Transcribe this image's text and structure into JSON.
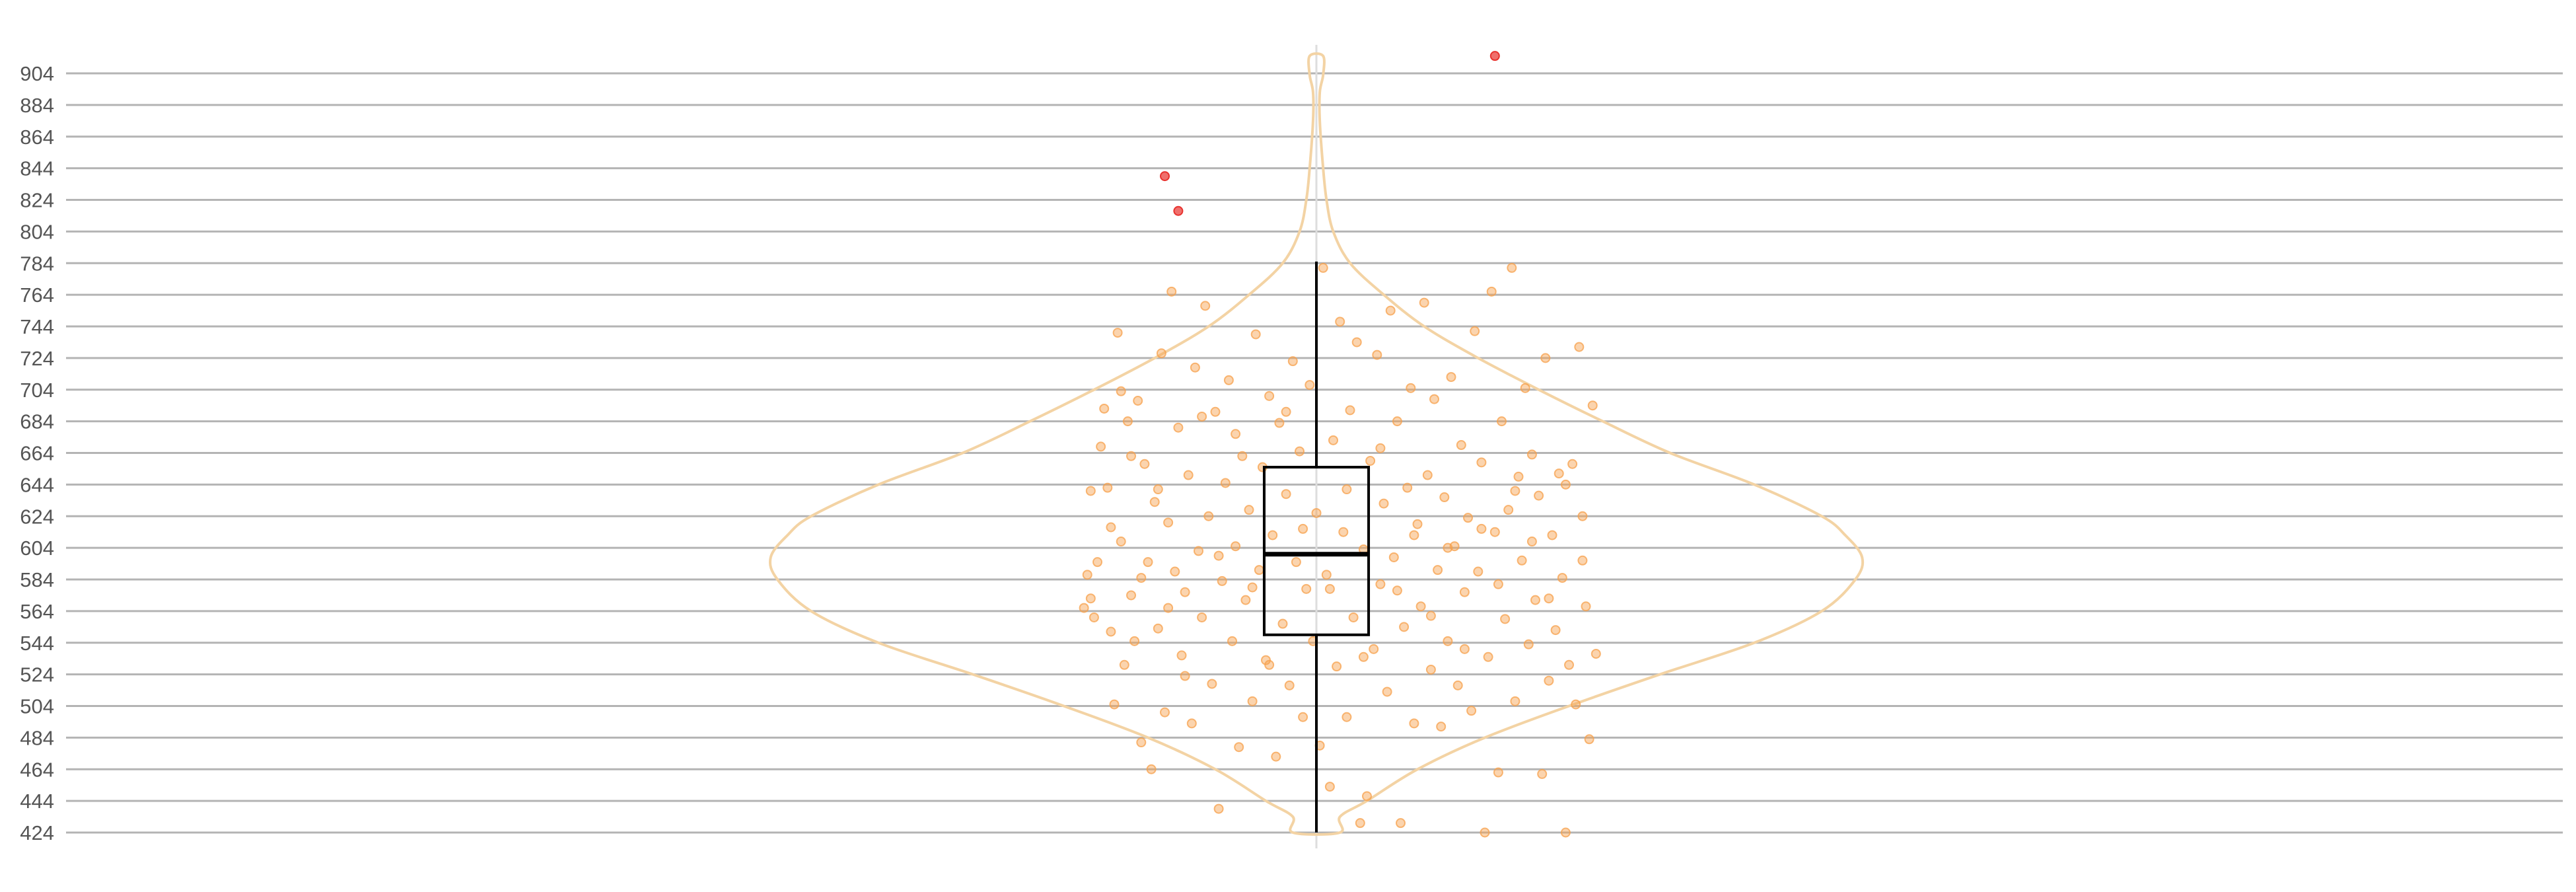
{
  "chart_data": {
    "type": "violin",
    "orientation": "vertical",
    "title": "",
    "xlabel": "",
    "ylabel": "",
    "ylim": [
      414,
      922
    ],
    "y_ticks": [
      424,
      444,
      464,
      484,
      504,
      524,
      544,
      564,
      584,
      604,
      624,
      644,
      664,
      684,
      704,
      724,
      744,
      764,
      784,
      804,
      824,
      844,
      864,
      884,
      904
    ],
    "grid": {
      "horizontal": true,
      "vertical": false
    },
    "legend": "none",
    "colors": {
      "violin_outline": "#f3d3a4",
      "points": "#f7a04b",
      "outliers": "#e8322e",
      "box": "#000000",
      "grid": "#b4b4b4",
      "center_line": "#dddddd"
    },
    "box": {
      "q1": 549,
      "median": 600,
      "q3": 655,
      "whisker_low": 424,
      "whisker_high": 785
    },
    "outliers": [
      {
        "x": -0.45,
        "y": 839
      },
      {
        "x": -0.41,
        "y": 817
      },
      {
        "x": 0.53,
        "y": 915
      }
    ],
    "violin_profile": [
      {
        "y": 424,
        "half_width": 0.07
      },
      {
        "y": 434,
        "half_width": 0.07
      },
      {
        "y": 444,
        "half_width": 0.15
      },
      {
        "y": 464,
        "half_width": 0.3
      },
      {
        "y": 484,
        "half_width": 0.5
      },
      {
        "y": 504,
        "half_width": 0.75
      },
      {
        "y": 524,
        "half_width": 1.02
      },
      {
        "y": 544,
        "half_width": 1.3
      },
      {
        "y": 564,
        "half_width": 1.5
      },
      {
        "y": 584,
        "half_width": 1.6
      },
      {
        "y": 598,
        "half_width": 1.62
      },
      {
        "y": 612,
        "half_width": 1.57
      },
      {
        "y": 624,
        "half_width": 1.5
      },
      {
        "y": 644,
        "half_width": 1.3
      },
      {
        "y": 664,
        "half_width": 1.05
      },
      {
        "y": 684,
        "half_width": 0.85
      },
      {
        "y": 704,
        "half_width": 0.66
      },
      {
        "y": 724,
        "half_width": 0.48
      },
      {
        "y": 744,
        "half_width": 0.32
      },
      {
        "y": 764,
        "half_width": 0.2
      },
      {
        "y": 784,
        "half_width": 0.1
      },
      {
        "y": 804,
        "half_width": 0.05
      },
      {
        "y": 824,
        "half_width": 0.03
      },
      {
        "y": 844,
        "half_width": 0.02
      },
      {
        "y": 874,
        "half_width": 0.01
      },
      {
        "y": 892,
        "half_width": 0.01
      },
      {
        "y": 903,
        "half_width": 0.02
      },
      {
        "y": 915,
        "half_width": 0.02
      }
    ],
    "points": [
      {
        "x": -0.69,
        "y": 566
      },
      {
        "x": -0.68,
        "y": 587
      },
      {
        "x": -0.67,
        "y": 572
      },
      {
        "x": -0.66,
        "y": 560
      },
      {
        "x": -0.64,
        "y": 668
      },
      {
        "x": -0.63,
        "y": 692
      },
      {
        "x": -0.62,
        "y": 642
      },
      {
        "x": -0.61,
        "y": 617
      },
      {
        "x": -0.6,
        "y": 505
      },
      {
        "x": -0.59,
        "y": 740
      },
      {
        "x": -0.58,
        "y": 608
      },
      {
        "x": -0.57,
        "y": 530
      },
      {
        "x": -0.56,
        "y": 684
      },
      {
        "x": -0.55,
        "y": 574
      },
      {
        "x": -0.54,
        "y": 545
      },
      {
        "x": -0.53,
        "y": 697
      },
      {
        "x": -0.52,
        "y": 481
      },
      {
        "x": -0.51,
        "y": 657
      },
      {
        "x": -0.5,
        "y": 595
      },
      {
        "x": -0.49,
        "y": 464
      },
      {
        "x": -0.48,
        "y": 633
      },
      {
        "x": -0.47,
        "y": 553
      },
      {
        "x": -0.46,
        "y": 727
      },
      {
        "x": -0.45,
        "y": 500
      },
      {
        "x": -0.44,
        "y": 620
      },
      {
        "x": -0.43,
        "y": 766
      },
      {
        "x": -0.42,
        "y": 589
      },
      {
        "x": -0.41,
        "y": 680
      },
      {
        "x": -0.4,
        "y": 536
      },
      {
        "x": -0.39,
        "y": 576
      },
      {
        "x": -0.38,
        "y": 650
      },
      {
        "x": -0.37,
        "y": 493
      },
      {
        "x": -0.36,
        "y": 718
      },
      {
        "x": -0.35,
        "y": 602
      },
      {
        "x": -0.34,
        "y": 560
      },
      {
        "x": -0.33,
        "y": 757
      },
      {
        "x": -0.32,
        "y": 624
      },
      {
        "x": -0.31,
        "y": 518
      },
      {
        "x": -0.3,
        "y": 690
      },
      {
        "x": -0.29,
        "y": 439
      },
      {
        "x": -0.28,
        "y": 583
      },
      {
        "x": -0.27,
        "y": 645
      },
      {
        "x": -0.26,
        "y": 710
      },
      {
        "x": -0.25,
        "y": 545
      },
      {
        "x": -0.24,
        "y": 605
      },
      {
        "x": -0.23,
        "y": 478
      },
      {
        "x": -0.22,
        "y": 662
      },
      {
        "x": -0.21,
        "y": 571
      },
      {
        "x": -0.2,
        "y": 628
      },
      {
        "x": -0.19,
        "y": 507
      },
      {
        "x": -0.18,
        "y": 739
      },
      {
        "x": -0.17,
        "y": 590
      },
      {
        "x": -0.16,
        "y": 655
      },
      {
        "x": -0.15,
        "y": 533
      },
      {
        "x": -0.14,
        "y": 700
      },
      {
        "x": -0.13,
        "y": 612
      },
      {
        "x": -0.12,
        "y": 472
      },
      {
        "x": -0.11,
        "y": 683
      },
      {
        "x": -0.1,
        "y": 556
      },
      {
        "x": -0.09,
        "y": 638
      },
      {
        "x": -0.08,
        "y": 517
      },
      {
        "x": -0.07,
        "y": 722
      },
      {
        "x": -0.06,
        "y": 595
      },
      {
        "x": -0.05,
        "y": 665
      },
      {
        "x": -0.04,
        "y": 497
      },
      {
        "x": -0.03,
        "y": 578
      },
      {
        "x": -0.02,
        "y": 707
      },
      {
        "x": -0.01,
        "y": 545
      },
      {
        "x": 0.0,
        "y": 626
      },
      {
        "x": 0.01,
        "y": 479
      },
      {
        "x": 0.02,
        "y": 781
      },
      {
        "x": 0.03,
        "y": 587
      },
      {
        "x": 0.04,
        "y": 453
      },
      {
        "x": 0.05,
        "y": 672
      },
      {
        "x": 0.06,
        "y": 529
      },
      {
        "x": 0.07,
        "y": 747
      },
      {
        "x": 0.08,
        "y": 614
      },
      {
        "x": 0.09,
        "y": 497
      },
      {
        "x": 0.1,
        "y": 691
      },
      {
        "x": 0.11,
        "y": 560
      },
      {
        "x": 0.12,
        "y": 734
      },
      {
        "x": 0.13,
        "y": 430
      },
      {
        "x": 0.14,
        "y": 603
      },
      {
        "x": 0.15,
        "y": 447
      },
      {
        "x": 0.16,
        "y": 659
      },
      {
        "x": 0.17,
        "y": 540
      },
      {
        "x": 0.18,
        "y": 726
      },
      {
        "x": 0.19,
        "y": 581
      },
      {
        "x": 0.2,
        "y": 632
      },
      {
        "x": 0.21,
        "y": 513
      },
      {
        "x": 0.22,
        "y": 754
      },
      {
        "x": 0.23,
        "y": 598
      },
      {
        "x": 0.24,
        "y": 684
      },
      {
        "x": 0.25,
        "y": 430
      },
      {
        "x": 0.26,
        "y": 554
      },
      {
        "x": 0.27,
        "y": 642
      },
      {
        "x": 0.28,
        "y": 705
      },
      {
        "x": 0.29,
        "y": 493
      },
      {
        "x": 0.3,
        "y": 619
      },
      {
        "x": 0.31,
        "y": 567
      },
      {
        "x": 0.32,
        "y": 759
      },
      {
        "x": 0.33,
        "y": 650
      },
      {
        "x": 0.34,
        "y": 527
      },
      {
        "x": 0.35,
        "y": 698
      },
      {
        "x": 0.36,
        "y": 590
      },
      {
        "x": 0.37,
        "y": 491
      },
      {
        "x": 0.38,
        "y": 636
      },
      {
        "x": 0.39,
        "y": 545
      },
      {
        "x": 0.4,
        "y": 712
      },
      {
        "x": 0.41,
        "y": 605
      },
      {
        "x": 0.42,
        "y": 517
      },
      {
        "x": 0.43,
        "y": 669
      },
      {
        "x": 0.44,
        "y": 576
      },
      {
        "x": 0.45,
        "y": 623
      },
      {
        "x": 0.46,
        "y": 501
      },
      {
        "x": 0.47,
        "y": 741
      },
      {
        "x": 0.48,
        "y": 589
      },
      {
        "x": 0.49,
        "y": 658
      },
      {
        "x": 0.5,
        "y": 424
      },
      {
        "x": 0.51,
        "y": 535
      },
      {
        "x": 0.52,
        "y": 766
      },
      {
        "x": 0.53,
        "y": 614
      },
      {
        "x": 0.54,
        "y": 462
      },
      {
        "x": 0.55,
        "y": 684
      },
      {
        "x": 0.56,
        "y": 559
      },
      {
        "x": 0.57,
        "y": 628
      },
      {
        "x": 0.58,
        "y": 781
      },
      {
        "x": 0.59,
        "y": 507
      },
      {
        "x": 0.6,
        "y": 649
      },
      {
        "x": 0.61,
        "y": 596
      },
      {
        "x": 0.62,
        "y": 705
      },
      {
        "x": 0.63,
        "y": 543
      },
      {
        "x": 0.64,
        "y": 663
      },
      {
        "x": 0.65,
        "y": 571
      },
      {
        "x": 0.66,
        "y": 637
      },
      {
        "x": 0.67,
        "y": 461
      },
      {
        "x": 0.68,
        "y": 724
      },
      {
        "x": 0.69,
        "y": 520
      },
      {
        "x": 0.7,
        "y": 612
      },
      {
        "x": 0.71,
        "y": 552
      },
      {
        "x": 0.72,
        "y": 651
      },
      {
        "x": 0.73,
        "y": 585
      },
      {
        "x": 0.74,
        "y": 424
      },
      {
        "x": 0.75,
        "y": 530
      },
      {
        "x": 0.76,
        "y": 657
      },
      {
        "x": 0.77,
        "y": 505
      },
      {
        "x": 0.78,
        "y": 731
      },
      {
        "x": 0.79,
        "y": 624
      },
      {
        "x": 0.8,
        "y": 567
      },
      {
        "x": 0.81,
        "y": 483
      },
      {
        "x": 0.82,
        "y": 694
      },
      {
        "x": 0.83,
        "y": 537
      },
      {
        "x": -0.67,
        "y": 640
      },
      {
        "x": -0.65,
        "y": 595
      },
      {
        "x": -0.61,
        "y": 551
      },
      {
        "x": -0.58,
        "y": 703
      },
      {
        "x": -0.55,
        "y": 662
      },
      {
        "x": -0.52,
        "y": 585
      },
      {
        "x": -0.47,
        "y": 641
      },
      {
        "x": -0.44,
        "y": 566
      },
      {
        "x": -0.39,
        "y": 523
      },
      {
        "x": -0.34,
        "y": 687
      },
      {
        "x": -0.29,
        "y": 599
      },
      {
        "x": -0.24,
        "y": 676
      },
      {
        "x": -0.19,
        "y": 579
      },
      {
        "x": -0.14,
        "y": 530
      },
      {
        "x": -0.09,
        "y": 690
      },
      {
        "x": -0.04,
        "y": 616
      },
      {
        "x": 0.04,
        "y": 578
      },
      {
        "x": 0.09,
        "y": 641
      },
      {
        "x": 0.14,
        "y": 535
      },
      {
        "x": 0.19,
        "y": 667
      },
      {
        "x": 0.24,
        "y": 577
      },
      {
        "x": 0.29,
        "y": 612
      },
      {
        "x": 0.34,
        "y": 561
      },
      {
        "x": 0.39,
        "y": 604
      },
      {
        "x": 0.44,
        "y": 540
      },
      {
        "x": 0.49,
        "y": 616
      },
      {
        "x": 0.54,
        "y": 581
      },
      {
        "x": 0.59,
        "y": 640
      },
      {
        "x": 0.64,
        "y": 608
      },
      {
        "x": 0.69,
        "y": 572
      },
      {
        "x": 0.74,
        "y": 644
      },
      {
        "x": 0.79,
        "y": 596
      }
    ]
  }
}
